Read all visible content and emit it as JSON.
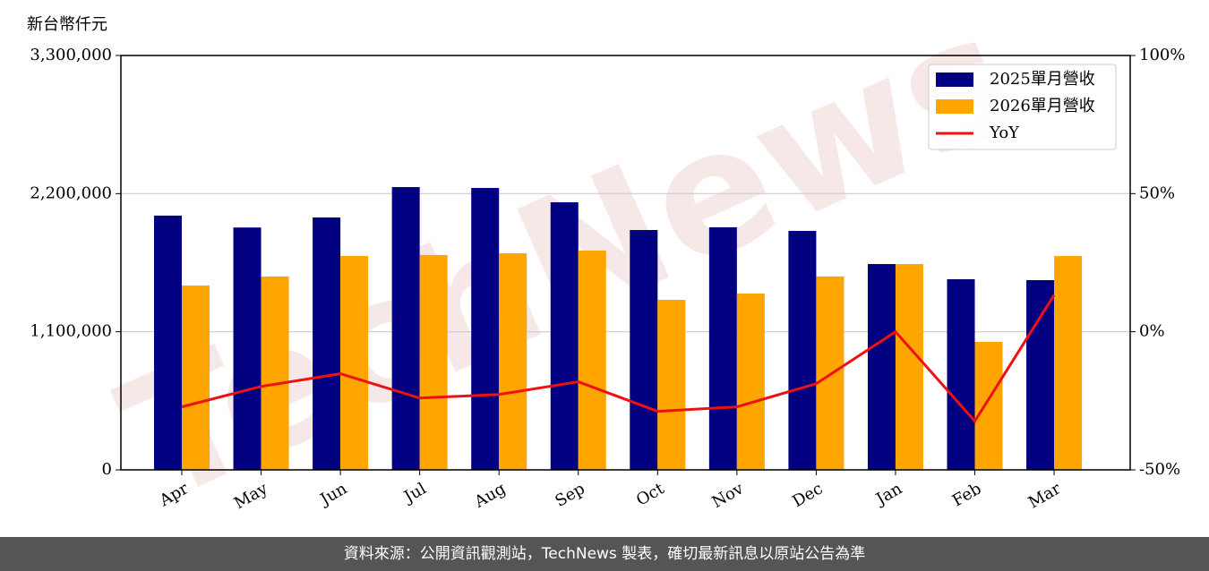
{
  "chart_data": {
    "type": "bar-line",
    "y_label": "新台幣仟元",
    "watermark": "TechNews",
    "footer": "資料來源：公開資訊觀測站，TechNews 製表，確切最新訊息以原站公告為準",
    "categories": [
      "Apr",
      "May",
      "Jun",
      "Jul",
      "Aug",
      "Sep",
      "Oct",
      "Nov",
      "Dec",
      "Jan",
      "Feb",
      "Mar"
    ],
    "series": [
      {
        "name": "2025單月營收",
        "color": "#000080",
        "kind": "bar",
        "values": [
          2025000,
          1930000,
          2010000,
          2252000,
          2245000,
          2131000,
          1910000,
          1932000,
          1903000,
          1639000,
          1518000,
          1511000
        ]
      },
      {
        "name": "2026單月營收",
        "color": "#ffa500",
        "kind": "bar",
        "values": [
          1468000,
          1540000,
          1703000,
          1711000,
          1725000,
          1746000,
          1354000,
          1404000,
          1540000,
          1639000,
          1019000,
          1703000
        ]
      },
      {
        "name": "YoY",
        "color": "#ee1111",
        "kind": "line",
        "axis": "y2",
        "values": [
          -27.2,
          -19.8,
          -15.2,
          -24.0,
          -22.7,
          -18.1,
          -28.8,
          -27.2,
          -18.8,
          0,
          -32.4,
          13.3
        ]
      }
    ],
    "ylim": [
      0,
      3300000
    ],
    "yticks": [
      0,
      {
        "value": 1100000,
        "label": "1,100,000"
      },
      {
        "value": 2200000,
        "label": "2,200,000"
      },
      {
        "value": 3300000,
        "label": "3,300,000"
      }
    ],
    "y2lim": [
      -50,
      100
    ],
    "y2ticks": [
      {
        "value": -50,
        "label": "-50%"
      },
      {
        "value": 0,
        "label": "0%"
      },
      {
        "value": 50,
        "label": "50%"
      },
      {
        "value": 100,
        "label": "100%"
      }
    ],
    "grid": true,
    "legend": "upper right"
  }
}
